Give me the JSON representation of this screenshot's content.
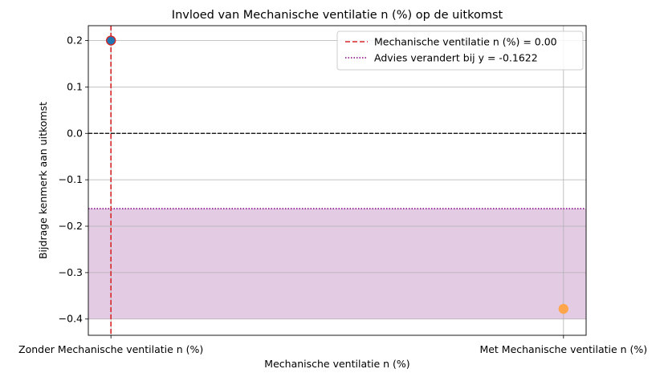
{
  "chart_data": {
    "type": "scatter",
    "title": "Invloed van Mechanische ventilatie n (%) op de uitkomst",
    "xlabel": "Mechanische ventilatie n (%)",
    "ylabel": "Bijdrage kenmerk aan uitkomst",
    "categories": [
      "Zonder Mechanische ventilatie n (%)",
      "Met Mechanische ventilatie n (%)"
    ],
    "xlim": [
      -0.05,
      1.05
    ],
    "ylim": [
      -0.435,
      0.232
    ],
    "yticks": [
      0.2,
      0.1,
      0.0,
      -0.1,
      -0.2,
      -0.3,
      -0.4
    ],
    "ytick_labels": [
      "0.2",
      "0.1",
      "0.0",
      "−0.1",
      "−0.2",
      "−0.3",
      "−0.4"
    ],
    "grid": true,
    "points": [
      {
        "x": 0,
        "y": 0.2,
        "color": "#1f77b4",
        "edgecolor": "#d62728"
      },
      {
        "x": 1,
        "y": -0.378,
        "color": "#ffa64d",
        "edgecolor": "#ffa64d"
      }
    ],
    "zero_line": {
      "y": 0,
      "color": "#000000"
    },
    "vline": {
      "x": 0,
      "color": "#d62728",
      "label": "Mechanische ventilatie n (%) = 0.00"
    },
    "threshold": {
      "y": -0.1622,
      "color": "#800080",
      "label": "Advies verandert bij y = -0.1622"
    },
    "shaded_region": {
      "y0": -0.4,
      "y1": -0.1622,
      "color": "#e4cbe4"
    },
    "legend": {
      "placement": "top-right"
    }
  }
}
